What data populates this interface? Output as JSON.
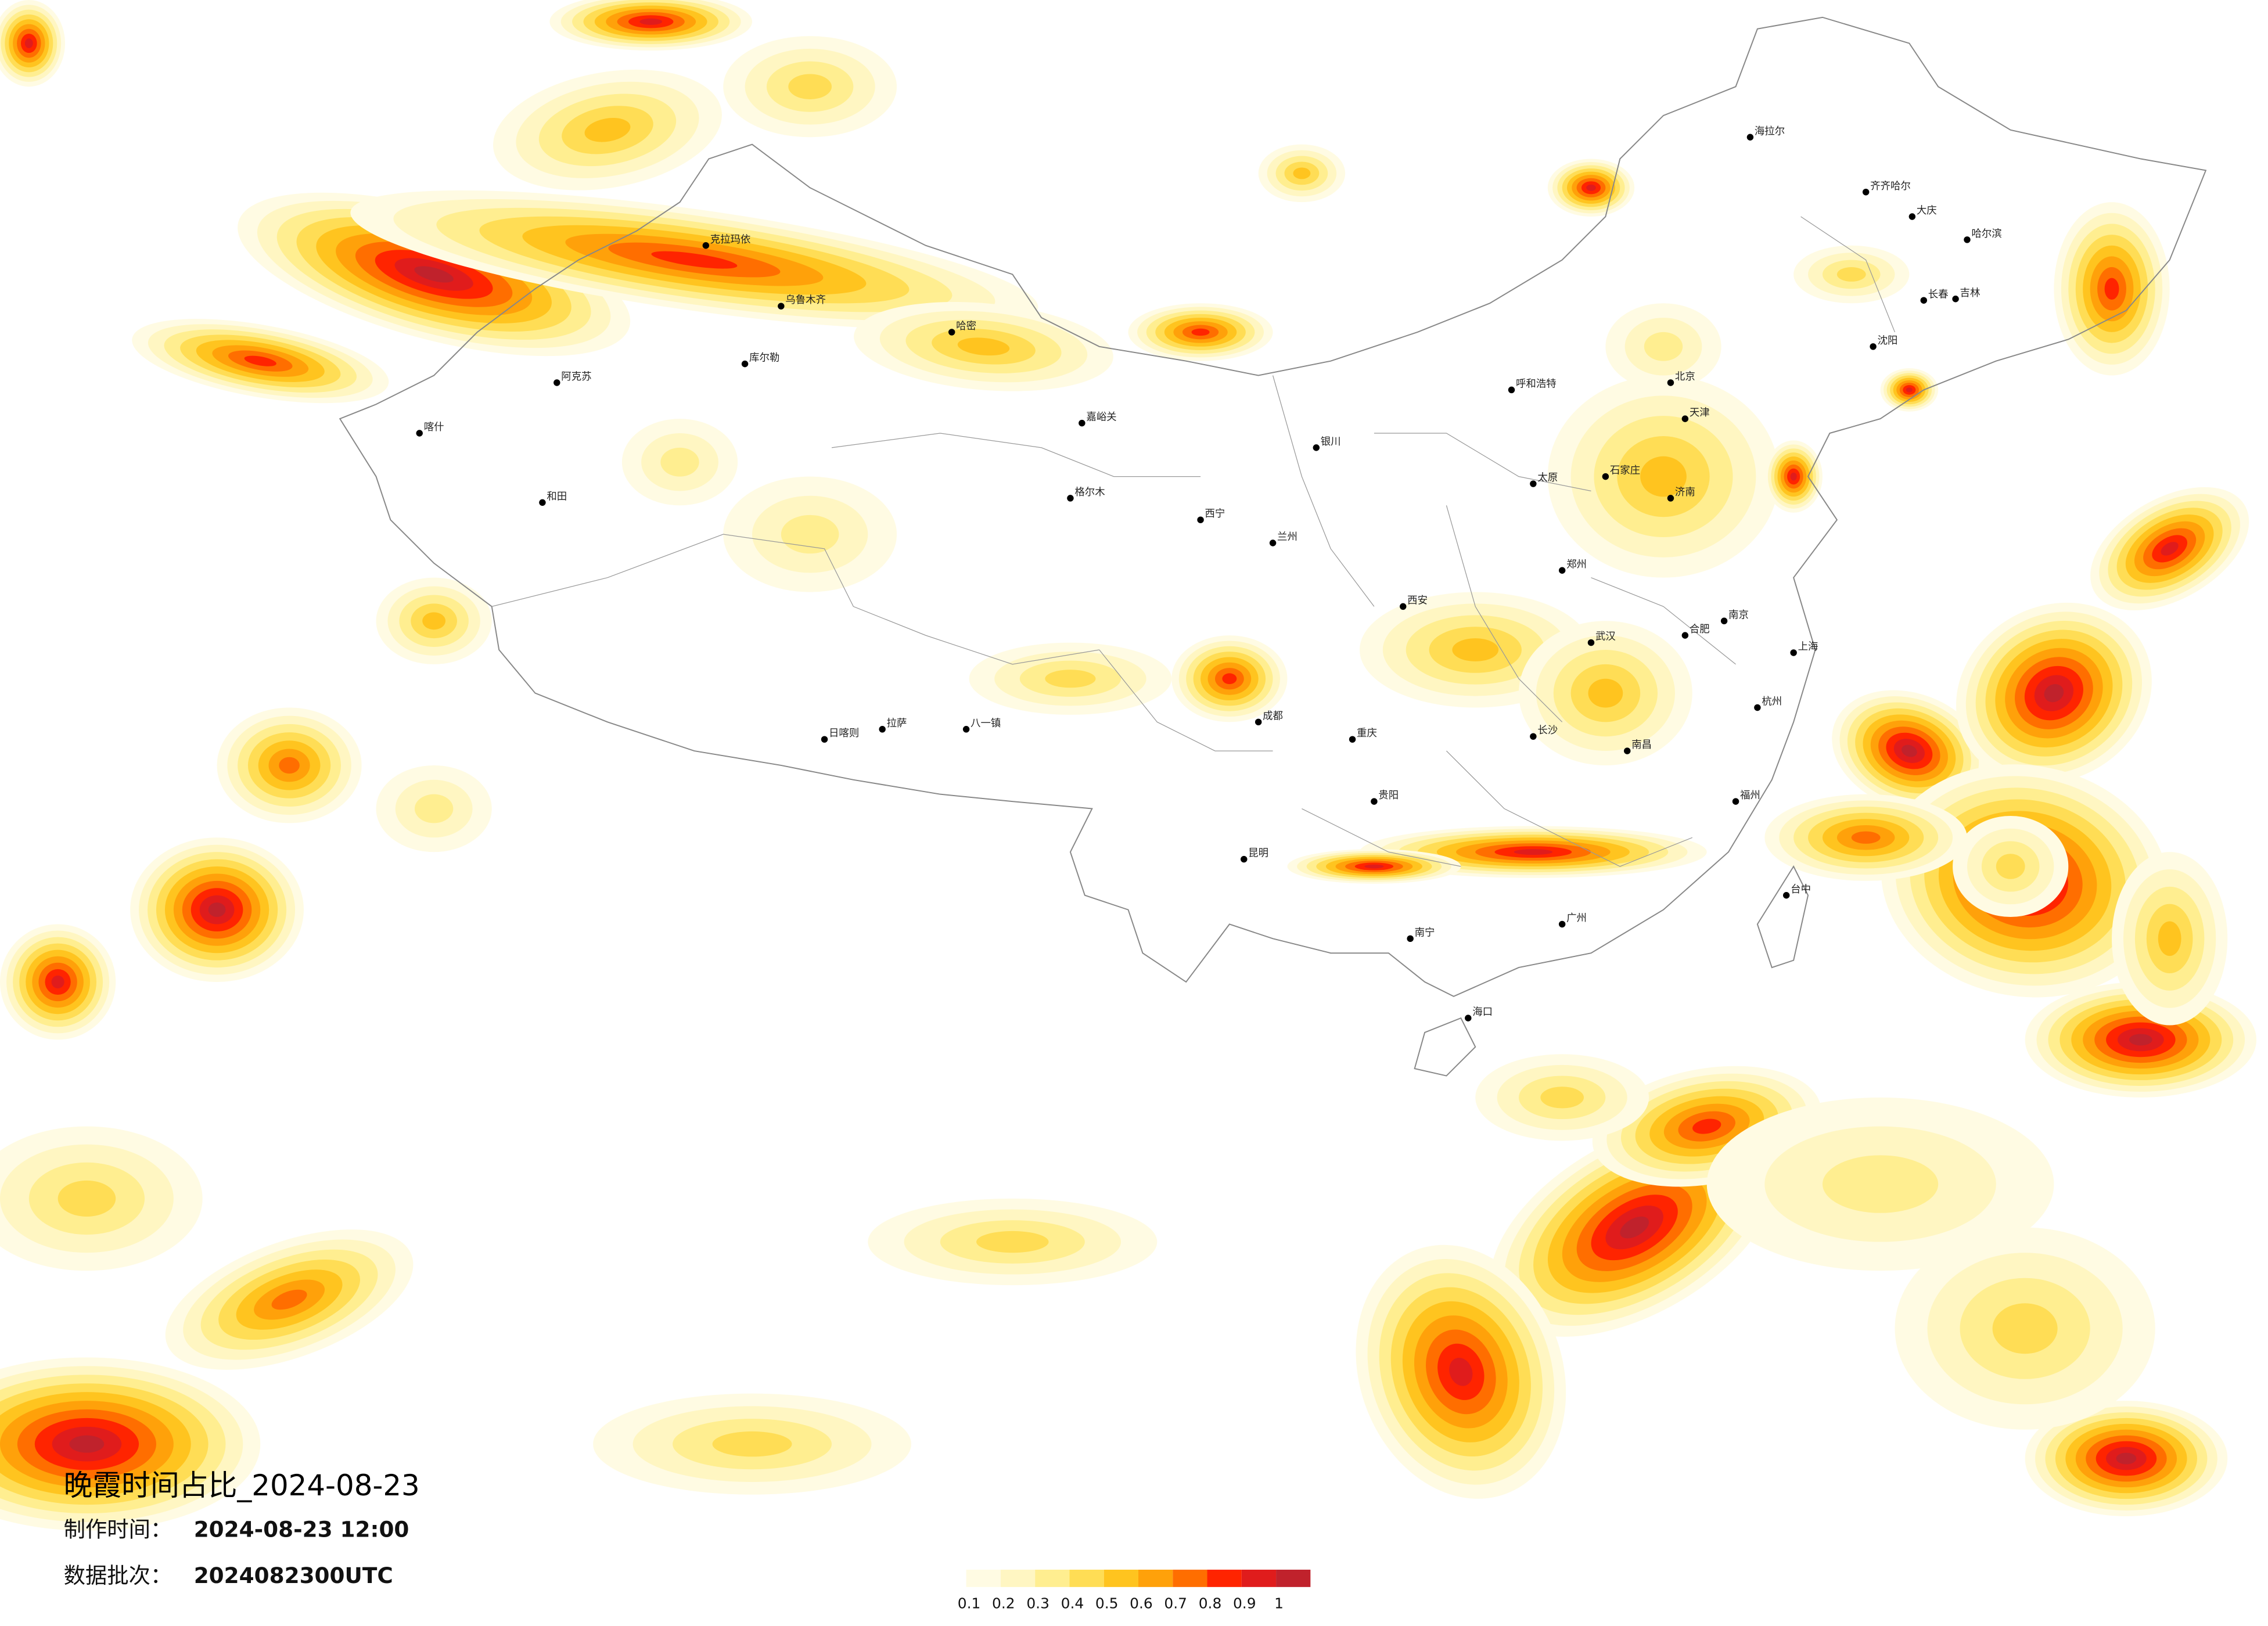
{
  "title": "晚霞时间占比_2024-08-23",
  "made_label": "制作时间：",
  "made_time": "2024-08-23 12:00",
  "batch_label": "数据批次：",
  "batch": "2024082300UTC",
  "legend": {
    "ticks": [
      0.1,
      0.2,
      0.3,
      0.4,
      0.5,
      0.6,
      0.7,
      0.8,
      0.9,
      1
    ],
    "colors": [
      "#fffbe3",
      "#fff6c2",
      "#ffee90",
      "#ffdd55",
      "#ffc41f",
      "#ffa10a",
      "#ff6e00",
      "#ff2400",
      "#e01c1c",
      "#c0222c"
    ]
  },
  "cities": [
    "海拉尔",
    "齐齐哈尔",
    "大庆",
    "哈尔滨",
    "长春",
    "吉林",
    "沈阳",
    "克拉玛依",
    "乌鲁木齐",
    "库尔勒",
    "阿克苏",
    "喀什",
    "和田",
    "哈密",
    "嘉峪关",
    "格尔木",
    "西宁",
    "兰州",
    "银川",
    "呼和浩特",
    "北京",
    "天津",
    "太原",
    "石家庄",
    "济南",
    "郑州",
    "西安",
    "成都",
    "重庆",
    "武汉",
    "合肥",
    "南京",
    "上海",
    "杭州",
    "长沙",
    "南昌",
    "福州",
    "广州",
    "南宁",
    "贵阳",
    "昆明",
    "拉萨",
    "日喀则",
    "八一镇",
    "海口",
    "台中"
  ]
}
